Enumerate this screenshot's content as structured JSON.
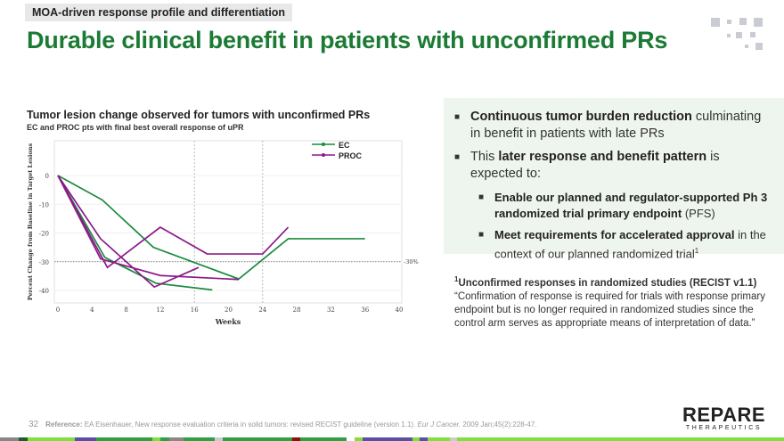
{
  "header": {
    "tag": "MOA-driven response profile and differentiation",
    "title": "Durable clinical benefit in patients with unconfirmed PRs"
  },
  "chart_data": {
    "type": "line",
    "title": "Tumor lesion change observed for tumors with unconfirmed PRs",
    "subtitle": "EC and PROC pts with final best overall response of uPR",
    "xlabel": "Weeks",
    "ylabel": "Percent Change from Baseline in Target Lesions",
    "xlim": [
      0,
      40
    ],
    "ylim": [
      -44,
      12
    ],
    "xticks": [
      0,
      4,
      8,
      12,
      16,
      20,
      24,
      28,
      32,
      36,
      40
    ],
    "yticks": [
      0,
      -10,
      -20,
      -30,
      -40
    ],
    "vlines": [
      16,
      24
    ],
    "threshold": {
      "y": -30,
      "label": "-30%"
    },
    "legend": {
      "placement": "top-right",
      "entries": [
        {
          "name": "EC",
          "color": "#1a8a3c"
        },
        {
          "name": "PROC",
          "color": "#8a1a8a"
        }
      ]
    },
    "series": [
      {
        "name": "EC",
        "points": [
          [
            0,
            0
          ],
          [
            5.2,
            -8.5
          ],
          [
            11.2,
            -25
          ],
          [
            21.2,
            -36
          ],
          [
            27,
            -22
          ],
          [
            36,
            -22
          ]
        ]
      },
      {
        "name": "EC",
        "points": [
          [
            0,
            0
          ],
          [
            5.5,
            -28.5
          ],
          [
            11.5,
            -37.5
          ],
          [
            18.1,
            -39.8
          ]
        ]
      },
      {
        "name": "PROC",
        "points": [
          [
            0,
            0
          ],
          [
            5,
            -22
          ],
          [
            11.3,
            -38.8
          ],
          [
            16.5,
            -32
          ]
        ]
      },
      {
        "name": "PROC",
        "points": [
          [
            0,
            0
          ],
          [
            5.8,
            -32
          ],
          [
            12,
            -18
          ],
          [
            17.5,
            -27.3
          ],
          [
            24,
            -27.3
          ],
          [
            27,
            -18
          ]
        ]
      },
      {
        "name": "PROC",
        "points": [
          [
            0,
            0
          ],
          [
            5,
            -29
          ],
          [
            12,
            -34.8
          ],
          [
            21.2,
            -36.2
          ]
        ]
      }
    ]
  },
  "panel": {
    "b1_bold": "Continuous tumor burden reduction",
    "b1_rest": " culminating in benefit in patients with late PRs",
    "b2_pre": "This ",
    "b2_bold": "later response and benefit pattern",
    "b2_rest": " is expected to:",
    "s1_bold": "Enable our planned and regulator-supported Ph 3 randomized trial primary endpoint",
    "s1_rest": " (PFS)",
    "s2_bold": "Meet requirements for accelerated approval",
    "s2_rest": " in the context of our planned randomized trial",
    "s2_sup": "1"
  },
  "note": {
    "sup": "1",
    "heading": "Unconfirmed responses in randomized studies (RECIST v1.1)",
    "text": "“Confirmation of response is required for trials with response primary endpoint but is no longer required in randomized studies since the control arm serves as appropriate means of interpretation of data.”"
  },
  "footer": {
    "page": "32",
    "ref_label": "Reference:",
    "ref": " EA Eisenhauer, New response evaluation criteria in solid tumors: revised RECIST guideline (version 1.1). ",
    "journal": "Eur J Cancer.",
    "ref_end": " 2009 Jan;45(2):228-47."
  },
  "logo": {
    "word": "REPARE",
    "sub": "THERAPEUTICS"
  },
  "colors": {
    "green": "#1b7a34",
    "ec": "#1a8a3c",
    "proc": "#8a1a8a"
  }
}
